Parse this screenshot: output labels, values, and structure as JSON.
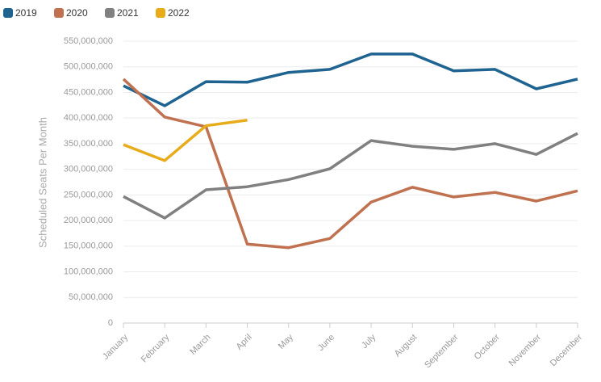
{
  "chart_data": {
    "type": "line",
    "y_label": "Scheduled Seats Per Month",
    "categories": [
      "January",
      "February",
      "March",
      "April",
      "May",
      "June",
      "July",
      "August",
      "September",
      "October",
      "November",
      "December"
    ],
    "series": [
      {
        "name": "2019",
        "color": "#1f6391",
        "values": [
          463000000,
          424000000,
          471000000,
          470000000,
          489000000,
          495000000,
          525000000,
          525000000,
          492000000,
          495000000,
          457000000,
          476000000
        ]
      },
      {
        "name": "2020",
        "color": "#c0714f",
        "values": [
          476000000,
          402000000,
          383000000,
          154000000,
          147000000,
          165000000,
          236000000,
          265000000,
          246000000,
          255000000,
          238000000,
          258000000
        ]
      },
      {
        "name": "2021",
        "color": "#808080",
        "values": [
          247000000,
          205000000,
          260000000,
          266000000,
          280000000,
          301000000,
          356000000,
          345000000,
          339000000,
          350000000,
          329000000,
          370000000
        ]
      },
      {
        "name": "2022",
        "color": "#e8ac1a",
        "values": [
          348000000,
          317000000,
          385000000,
          396000000,
          null,
          null,
          null,
          null,
          null,
          null,
          null,
          null
        ]
      }
    ],
    "ylim": [
      0,
      550000000
    ],
    "yticks": [
      0,
      {
        "value": 50000000,
        "label": "50,000,000"
      },
      {
        "value": 100000000,
        "label": "100,000,000"
      },
      {
        "value": 150000000,
        "label": "150,000,000"
      },
      {
        "value": 200000000,
        "label": "200,000,000"
      },
      {
        "value": 250000000,
        "label": "250,000,000"
      },
      {
        "value": 300000000,
        "label": "300,000,000"
      },
      {
        "value": 350000000,
        "label": "350,000,000"
      },
      {
        "value": 400000000,
        "label": "400,000,000"
      },
      {
        "value": 450000000,
        "label": "450,000,000"
      },
      {
        "value": 500000000,
        "label": "500,000,000"
      },
      {
        "value": 550000000,
        "label": "550,000,000"
      }
    ],
    "grid": true
  }
}
